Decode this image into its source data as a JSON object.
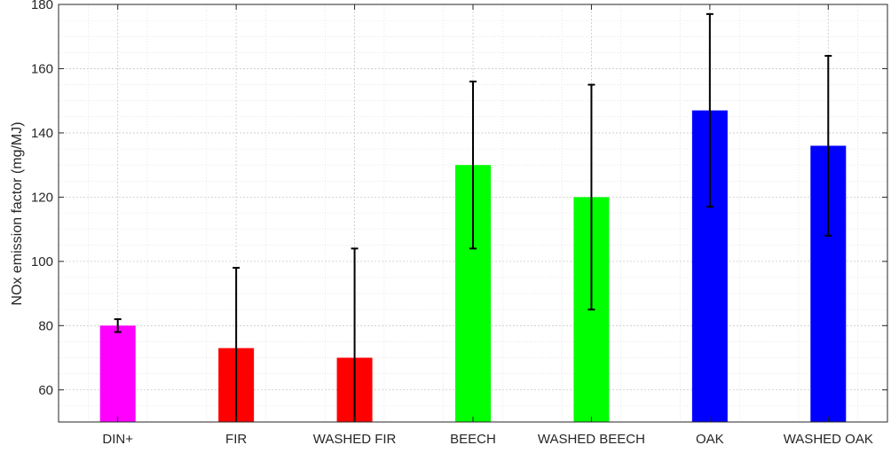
{
  "chart_data": {
    "type": "bar",
    "title": "",
    "xlabel": "",
    "ylabel": "NOx emission factor (mg/MJ)",
    "ylim": [
      50,
      180
    ],
    "yticks": [
      60,
      80,
      100,
      120,
      140,
      160,
      180
    ],
    "grid": true,
    "minor_grid": true,
    "categories": [
      "DIN+",
      "FIR",
      "WASHED FIR",
      "BEECH",
      "WASHED BEECH",
      "OAK",
      "WASHED OAK"
    ],
    "values": [
      80,
      73,
      70,
      130,
      120,
      147,
      136
    ],
    "error_low": [
      78,
      50,
      50,
      104,
      85,
      117,
      108
    ],
    "error_high": [
      82,
      98,
      104,
      156,
      155,
      177,
      164
    ],
    "colors": [
      "#ff00ff",
      "#ff0000",
      "#ff0000",
      "#00ff00",
      "#00ff00",
      "#0000ff",
      "#0000ff"
    ]
  }
}
